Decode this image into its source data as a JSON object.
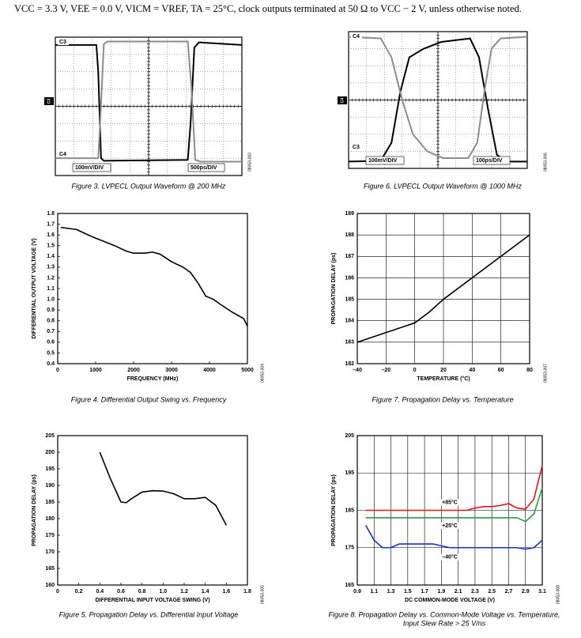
{
  "header": {
    "conditions": "VCC = 3.3 V, VEE = 0.0 V, VICM = VREF, TA = 25°C, clock outputs terminated at 50 Ω to VCC − 2 V, unless otherwise noted."
  },
  "chart_data": [
    {
      "type": "scope",
      "caption": "Figure 3. LVPECL Output Waveform @ 200 MHz",
      "code": "08053-003",
      "labels": {
        "top": "C3",
        "bottom": "C4",
        "volts": "100mV/DIV",
        "time": "500ps/DIV",
        "marker": "C3"
      },
      "series": [
        {
          "color": "#000000",
          "x": [
            0,
            2.2,
            2.3,
            2.45,
            2.6,
            7.1,
            7.25,
            7.45,
            7.7,
            10
          ],
          "values": [
            7.55,
            7.55,
            6,
            1.0,
            0.85,
            0.9,
            3,
            7.4,
            7.7,
            7.55
          ]
        },
        {
          "color": "#8c8c8c",
          "x": [
            0,
            2.3,
            2.4,
            2.6,
            2.8,
            7.1,
            7.3,
            7.5,
            7.8,
            10
          ],
          "values": [
            1.0,
            1.0,
            3,
            7.6,
            7.75,
            7.75,
            5,
            0.9,
            0.8,
            0.8
          ]
        }
      ]
    },
    {
      "type": "scope",
      "caption": "Figure 6. LVPECL Output Waveform @ 1000 MHz",
      "code": "08053-006",
      "labels": {
        "top": "C4",
        "bottom": "C3",
        "volts": "100mV/DIV",
        "time": "100ps/DIV",
        "marker": "C4"
      },
      "series": [
        {
          "color": "#000000",
          "x": [
            0,
            1.8,
            2.4,
            2.9,
            3.4,
            4.2,
            5.2,
            6.8,
            7.3,
            7.8,
            8.3,
            8.8,
            10
          ],
          "values": [
            0.4,
            0.45,
            1.5,
            4.5,
            6.5,
            7.0,
            7.4,
            7.6,
            6.5,
            3.5,
            0.8,
            0.4,
            0.4
          ]
        },
        {
          "color": "#8c8c8c",
          "x": [
            0,
            1.8,
            2.4,
            3,
            3.6,
            4.4,
            5.3,
            6.7,
            7.2,
            7.6,
            8,
            8.5,
            10
          ],
          "values": [
            7.7,
            7.6,
            6.5,
            4,
            2,
            1.0,
            0.6,
            0.6,
            1.5,
            4.5,
            7,
            7.6,
            7.7
          ]
        }
      ]
    },
    {
      "type": "line",
      "caption": "Figure 4. Differential Output Swing vs. Frequency",
      "code": "08053-004",
      "x_label": "FREQUENCY (MHz)",
      "y_label": "DIFFERENTIAL OUTPUT VOLTAGE (V)",
      "grid": false,
      "color": "#000000",
      "x": [
        80,
        500,
        800,
        1000,
        1500,
        1800,
        2000,
        2300,
        2500,
        2700,
        3000,
        3300,
        3500,
        3700,
        3900,
        4100,
        4300,
        4600,
        4900,
        5000
      ],
      "values": [
        1.67,
        1.65,
        1.6,
        1.57,
        1.5,
        1.45,
        1.43,
        1.43,
        1.44,
        1.42,
        1.35,
        1.3,
        1.25,
        1.15,
        1.03,
        1.0,
        0.95,
        0.88,
        0.82,
        0.75
      ],
      "xlim": [
        0,
        5000
      ],
      "xticks": [
        0,
        1000,
        2000,
        3000,
        4000,
        5000
      ],
      "ylim": [
        0.4,
        1.8
      ],
      "yticks": [
        0.4,
        0.5,
        0.6,
        0.7,
        0.8,
        0.9,
        {
          "value": 1,
          "label": "1.0"
        },
        1.1,
        1.2,
        1.3,
        1.4,
        1.5,
        1.6,
        1.7,
        1.8
      ]
    },
    {
      "type": "line",
      "caption": "Figure 7. Propagation Delay vs. Temperature",
      "code": "08053-007",
      "x_label": "TEMPERATURE (°C)",
      "y_label": "PROPAGATION DELAY (ps)",
      "grid": true,
      "color": "#000000",
      "x": [
        -40,
        0,
        10,
        20,
        80
      ],
      "values": [
        183,
        183.9,
        184.4,
        185,
        188
      ],
      "xlim": [
        -40,
        80
      ],
      "xticks": [
        {
          "value": -40,
          "label": "–40"
        },
        {
          "value": -20,
          "label": "–20"
        },
        0,
        20,
        40,
        60,
        80
      ],
      "ylim": [
        182,
        189
      ],
      "yticks": [
        182,
        183,
        184,
        185,
        186,
        187,
        188,
        189
      ]
    },
    {
      "type": "line",
      "caption": "Figure 5. Propagation Delay vs. Differential Input Voltage",
      "code": "08053-005",
      "x_label": "DIFFERENTIAL INPUT VOLTAGE SWING (V)",
      "y_label": "PROPAGATION DELAY (ps)",
      "grid": false,
      "color": "#000000",
      "x": [
        0.4,
        0.5,
        0.6,
        0.65,
        0.7,
        0.8,
        0.9,
        1.0,
        1.1,
        1.2,
        1.3,
        1.4,
        1.5,
        1.6
      ],
      "values": [
        200,
        192,
        185,
        184.8,
        186,
        188,
        188.4,
        188.3,
        187.5,
        186,
        186,
        186.4,
        184,
        178
      ],
      "xlim": [
        0,
        1.8
      ],
      "xticks": [
        0,
        0.2,
        0.4,
        0.6,
        0.8,
        {
          "value": 1,
          "label": "1.0"
        },
        1.2,
        1.4,
        1.6,
        1.8
      ],
      "ylim": [
        160,
        205
      ],
      "yticks": [
        160,
        165,
        170,
        175,
        180,
        185,
        190,
        195,
        200,
        205
      ]
    },
    {
      "type": "line",
      "caption": [
        "Figure 8. Propagation Delay vs. Common-Mode Voltage vs. Temperature,",
        "Input Slew Rate > 25 V/ns"
      ],
      "code": "08053-008",
      "x_label": "DC COMMON-MODE VOLTAGE (V)",
      "y_label": "PROPAGATION DELAY (ps)",
      "grid": true,
      "x": [
        1.0,
        1.1,
        1.2,
        1.3,
        1.4,
        1.5,
        1.6,
        1.7,
        1.8,
        1.9,
        2.0,
        2.1,
        2.2,
        2.3,
        2.4,
        2.5,
        2.6,
        2.7,
        2.8,
        2.9,
        3.0,
        3.1
      ],
      "series": [
        {
          "name": "+85°C",
          "color": "#e8141c",
          "values": [
            185,
            185,
            185,
            185,
            185,
            185,
            185,
            185,
            185,
            185,
            185,
            185,
            185,
            185.6,
            186,
            186,
            186.3,
            186.8,
            185.6,
            185.3,
            188,
            197
          ]
        },
        {
          "name": "+25°C",
          "color": "#2a9a4a",
          "values": [
            183,
            183,
            183,
            183,
            183,
            183,
            183,
            183,
            183,
            183,
            183,
            183,
            183,
            183,
            183,
            183,
            183,
            183,
            183,
            182,
            184,
            191
          ]
        },
        {
          "name": "–40°C",
          "color": "#1830d8",
          "values": [
            181,
            177,
            175,
            175,
            176,
            176,
            176,
            176,
            176,
            175.5,
            175,
            175,
            175,
            175,
            175,
            175,
            175,
            175,
            175,
            174.6,
            175,
            177
          ]
        }
      ],
      "xlim": [
        0.9,
        3.1
      ],
      "xticks": [
        0.9,
        1.1,
        1.3,
        1.5,
        1.7,
        1.9,
        2.1,
        2.3,
        2.5,
        2.7,
        2.9,
        3.1
      ],
      "ylim": [
        165,
        205
      ],
      "yticks": [
        165,
        175,
        185,
        195,
        205
      ]
    }
  ]
}
